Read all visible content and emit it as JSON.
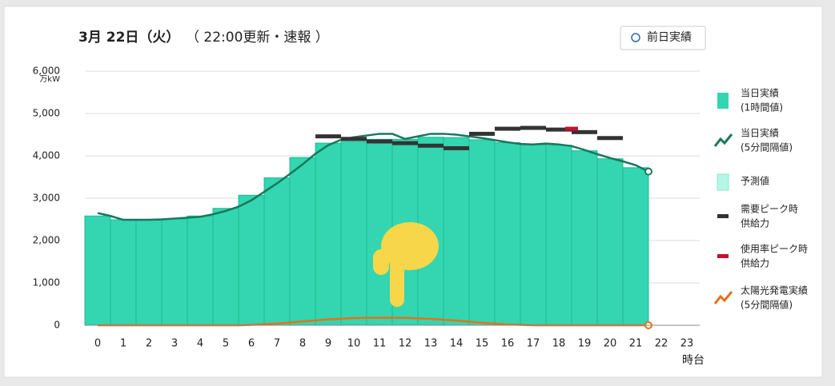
{
  "chart_data": {
    "type": "bar",
    "title": "3月 22日（火）",
    "subtitle": "（ 22:00更新・速報 ）",
    "button": "前日実績",
    "y_unit": "万kW",
    "x_label": "時台",
    "xlim": [
      -0.5,
      23.5
    ],
    "xticks": [
      0,
      1,
      2,
      3,
      4,
      5,
      6,
      7,
      8,
      9,
      10,
      11,
      12,
      13,
      14,
      15,
      16,
      17,
      18,
      19,
      20,
      21,
      22,
      23
    ],
    "ylim": [
      0,
      6000
    ],
    "yticks": [
      0,
      {
        "value": 1000,
        "label": "1,000"
      },
      {
        "value": 2000,
        "label": "2,000"
      },
      {
        "value": 3000,
        "label": "3,000"
      },
      {
        "value": 4000,
        "label": "4,000"
      },
      {
        "value": 5000,
        "label": "5,000"
      },
      {
        "value": 6000,
        "label": "6,000"
      }
    ],
    "grid": true,
    "series": [
      {
        "name": [
          "当日実績",
          "(1時間値)"
        ],
        "type": "bar",
        "color": "#33d6b0",
        "x": [
          0,
          1,
          2,
          3,
          4,
          5,
          6,
          7,
          8,
          9,
          10,
          11,
          12,
          13,
          14,
          15,
          16,
          17,
          18,
          19,
          20,
          21
        ],
        "values": [
          2580,
          2490,
          2480,
          2510,
          2580,
          2760,
          3070,
          3480,
          3960,
          4300,
          4340,
          4390,
          4390,
          4440,
          4430,
          4380,
          4310,
          4260,
          4250,
          4120,
          3930,
          3720
        ]
      },
      {
        "name": [
          "当日実績",
          "(5分間隔値)"
        ],
        "type": "line",
        "color": "#17785c",
        "x": [
          0,
          0.5,
          1,
          1.5,
          2,
          2.5,
          3,
          3.5,
          4,
          4.5,
          5,
          5.5,
          6,
          6.5,
          7,
          7.5,
          8,
          8.5,
          9,
          9.5,
          10,
          10.5,
          11,
          11.5,
          12,
          12.5,
          13,
          13.5,
          14,
          14.5,
          15,
          15.5,
          16,
          16.5,
          17,
          17.5,
          18,
          18.5,
          19,
          19.5,
          20,
          20.5,
          21,
          21.5
        ],
        "values": [
          2650,
          2580,
          2490,
          2490,
          2490,
          2500,
          2520,
          2540,
          2560,
          2620,
          2700,
          2800,
          2950,
          3150,
          3350,
          3570,
          3800,
          4050,
          4250,
          4380,
          4440,
          4480,
          4520,
          4520,
          4400,
          4460,
          4520,
          4520,
          4500,
          4460,
          4420,
          4370,
          4320,
          4280,
          4270,
          4290,
          4270,
          4230,
          4140,
          4040,
          3950,
          3870,
          3780,
          3630
        ]
      },
      {
        "name": [
          "予測値"
        ],
        "type": "bar",
        "color": "#b5f7e6",
        "x": [],
        "values": []
      },
      {
        "name": [
          "需要ピーク時",
          "供給力"
        ],
        "type": "dash",
        "color": "#333333",
        "x": [
          9,
          10,
          11,
          12,
          13,
          14,
          15,
          16,
          17,
          18,
          19,
          20
        ],
        "values": [
          4460,
          4400,
          4340,
          4300,
          4240,
          4180,
          4520,
          4640,
          4660,
          4620,
          4560,
          4420
        ]
      },
      {
        "name": [
          "使用率ピーク時",
          "供給力"
        ],
        "type": "dash",
        "color": "#c8102e",
        "x": [
          18.5
        ],
        "values": [
          4640
        ]
      },
      {
        "name": [
          "太陽光発電実績",
          "(5分間隔値)"
        ],
        "type": "line",
        "color": "#e8701a",
        "x": [
          0,
          5.5,
          6,
          7,
          8,
          9,
          10,
          11,
          12,
          13,
          14,
          15,
          16,
          17,
          21.5
        ],
        "values": [
          0,
          0,
          10,
          40,
          90,
          140,
          170,
          180,
          175,
          150,
          110,
          60,
          20,
          0,
          0
        ]
      }
    ]
  }
}
